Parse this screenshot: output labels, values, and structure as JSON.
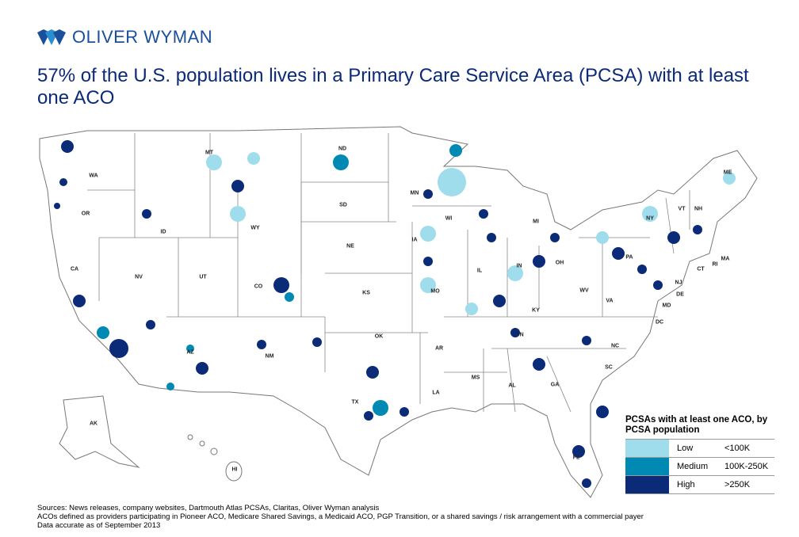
{
  "brand": {
    "name": "OLIVER WYMAN"
  },
  "title": "57% of the U.S. population lives in a Primary Care Service Area (PCSA) with at least one ACO",
  "colors": {
    "low": "#9fdcec",
    "medium": "#0089b3",
    "high": "#0b2a78",
    "state_fill": "#ffffff",
    "border": "#888888"
  },
  "states": [
    "WA",
    "MT",
    "ND",
    "MN",
    "ME",
    "OR",
    "ID",
    "SD",
    "WI",
    "MI",
    "VT",
    "NH",
    "NY",
    "WY",
    "IA",
    "NE",
    "PA",
    "OH",
    "IN",
    "IL",
    "MA",
    "CT",
    "RI",
    "NJ",
    "CA",
    "NV",
    "UT",
    "CO",
    "KS",
    "MO",
    "WV",
    "VA",
    "DE",
    "MD",
    "KY",
    "DC",
    "TN",
    "NC",
    "AR",
    "OK",
    "NM",
    "AZ",
    "SC",
    "MS",
    "AL",
    "GA",
    "TX",
    "LA",
    "FL",
    "AK",
    "HI"
  ],
  "legend": {
    "title": "PCSAs with at least one ACO, by PCSA population",
    "items": [
      {
        "label": "Low",
        "range": "<100K",
        "color": "#9fdcec"
      },
      {
        "label": "Medium",
        "range": "100K-250K",
        "color": "#0089b3"
      },
      {
        "label": "High",
        "range": ">250K",
        "color": "#0b2a78"
      }
    ]
  },
  "notes": [
    "Sources: News releases, company websites, Dartmouth Atlas PCSAs, Claritas, Oliver Wyman analysis",
    "ACOs defined as providers participating in Pioneer ACO, Medicare Shared Savings, a Medicaid ACO, PGP  Transition, or a shared savings / risk arrangement with a commercial payer",
    "Data accurate as of September 2013"
  ]
}
